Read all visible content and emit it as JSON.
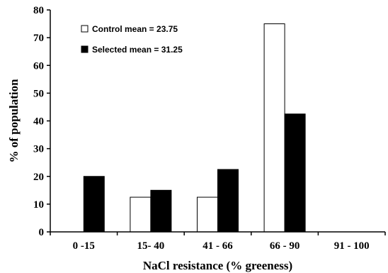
{
  "chart_data": {
    "type": "bar",
    "title": "",
    "xlabel": "NaCl resistance (% greeness)",
    "ylabel": "% of population",
    "ylim": [
      0,
      80
    ],
    "yticks": [
      0,
      10,
      20,
      30,
      40,
      50,
      60,
      70,
      80
    ],
    "categories": [
      "0 -15",
      "15- 40",
      "41 - 66",
      "66 - 90",
      "91 - 100"
    ],
    "series": [
      {
        "name": "Control mean = 23.75",
        "values": [
          0,
          12.5,
          12.5,
          75,
          0
        ],
        "color": "#ffffff"
      },
      {
        "name": "Selected mean = 31.25",
        "values": [
          20,
          15,
          22.5,
          42.5,
          0
        ],
        "color": "#000000"
      }
    ],
    "grid": false,
    "legend_position": "top-left"
  }
}
